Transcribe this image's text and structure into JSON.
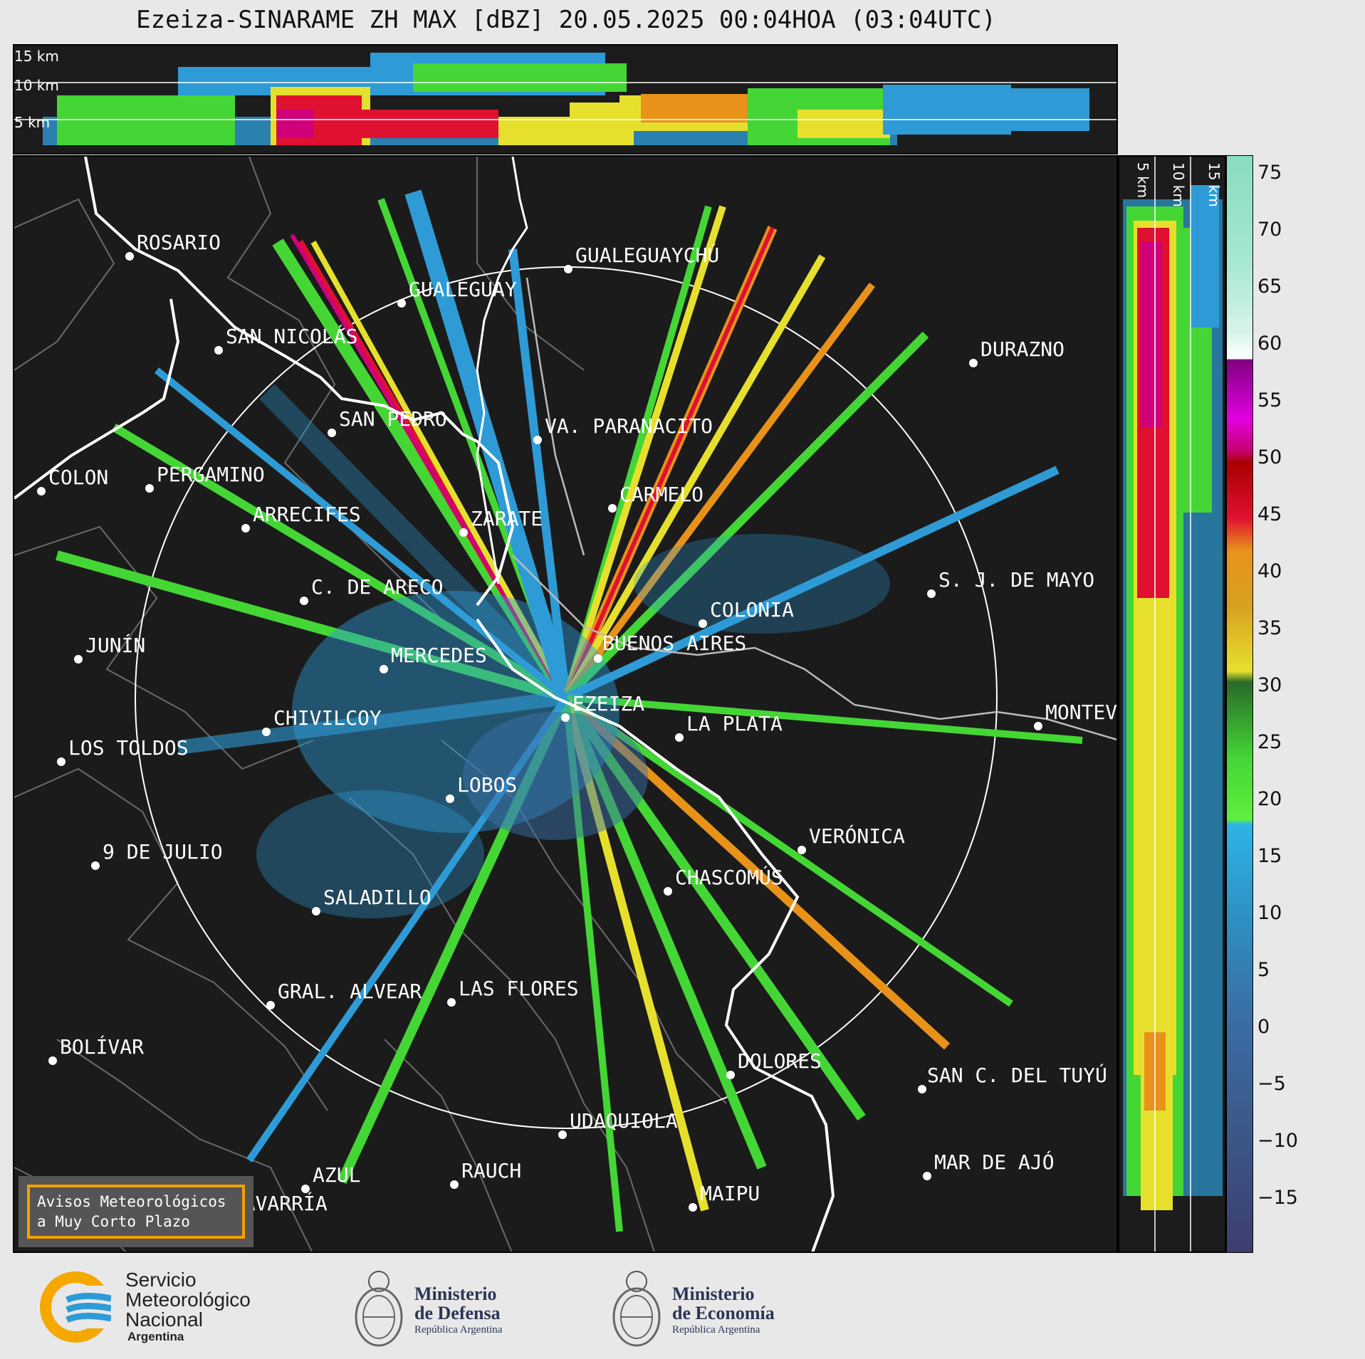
{
  "title": "Ezeiza-SINARAME ZH MAX [dBZ] 20.05.2025 00:04HOA (03:04UTC)",
  "top_panel": {
    "labels": [
      "15 km",
      "10 km",
      "5 km"
    ]
  },
  "side_panel": {
    "labels": [
      "5 km",
      "10 km",
      "15 km"
    ]
  },
  "colorbar": {
    "ticks": [
      "75",
      "70",
      "65",
      "60",
      "55",
      "50",
      "45",
      "40",
      "35",
      "30",
      "25",
      "20",
      "15",
      "10",
      "5",
      "0",
      "−5",
      "−10",
      "−15"
    ]
  },
  "cities": [
    {
      "name": "ROSARIO"
    },
    {
      "name": "GUALEGUAYCHÚ"
    },
    {
      "name": "GUALEGUAY"
    },
    {
      "name": "SAN NICOLÁS"
    },
    {
      "name": "DURAZNO"
    },
    {
      "name": "SAN PEDRO"
    },
    {
      "name": "VA. PARANACITO"
    },
    {
      "name": "COLON"
    },
    {
      "name": "PERGAMINO"
    },
    {
      "name": "CARMELO"
    },
    {
      "name": "ARRECIFES"
    },
    {
      "name": "ZARATE"
    },
    {
      "name": "S. J. DE MAYO"
    },
    {
      "name": "C. DE ARECO"
    },
    {
      "name": "COLONIA"
    },
    {
      "name": "JUNÍN"
    },
    {
      "name": "BUENOS AIRES"
    },
    {
      "name": "MERCEDES"
    },
    {
      "name": "EZEIZA"
    },
    {
      "name": "MONTEV"
    },
    {
      "name": "CHIVILCOY"
    },
    {
      "name": "LA PLATA"
    },
    {
      "name": "LOS TOLDOS"
    },
    {
      "name": "LOBOS"
    },
    {
      "name": "VERÓNICA"
    },
    {
      "name": "9 DE JULIO"
    },
    {
      "name": "CHASCOMÚS"
    },
    {
      "name": "SALADILLO"
    },
    {
      "name": "GRAL. ALVEAR"
    },
    {
      "name": "LAS FLORES"
    },
    {
      "name": "BOLÍVAR"
    },
    {
      "name": "DOLORES"
    },
    {
      "name": "SAN C. DEL TUYÚ"
    },
    {
      "name": "UDAQUIOLA"
    },
    {
      "name": "MAR DE AJÓ"
    },
    {
      "name": "AZUL"
    },
    {
      "name": "RAUCH"
    },
    {
      "name": "OLAVARRÍA"
    },
    {
      "name": "MAIPU"
    }
  ],
  "warning": {
    "line1": "Avisos Meteorológicos",
    "line2": "a Muy Corto Plazo"
  },
  "footer": {
    "smn": {
      "line1": "Servicio",
      "line2": "Meteorológico",
      "line3": "Nacional",
      "line4": "Argentina"
    },
    "defensa": {
      "line1": "Ministerio",
      "line2": "de Defensa",
      "line3": "República Argentina"
    },
    "economia": {
      "line1": "Ministerio",
      "line2": "de Economía",
      "line3": "República Argentina"
    }
  },
  "colors": {
    "background": "#1b1b1b",
    "blue": "#2e9bd6",
    "green": "#44d635",
    "yellow": "#e6e02d",
    "orange": "#e8921a",
    "red": "#e01030",
    "magenta": "#d0007a"
  }
}
